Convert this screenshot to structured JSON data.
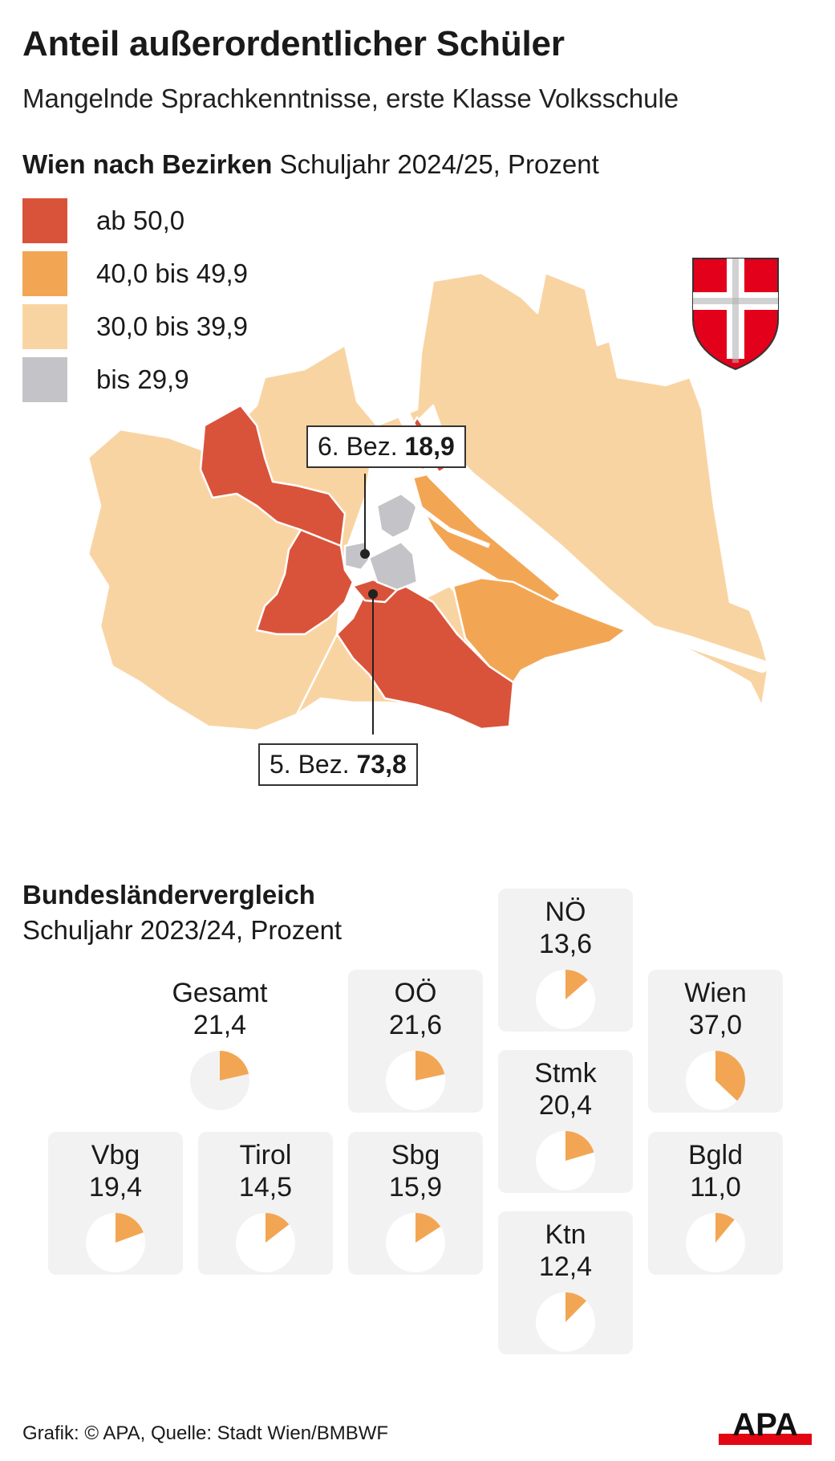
{
  "header": {
    "title": "Anteil außerordentlicher Schüler",
    "subtitle": "Mangelnde Sprachkenntnisse, erste Klasse Volksschule"
  },
  "map_section": {
    "heading_bold": "Wien nach Bezirken",
    "heading_rest": " Schuljahr 2024/25, Prozent"
  },
  "legend": [
    {
      "label": "ab 50,0",
      "color": "#d9533a"
    },
    {
      "label": "40,0 bis 49,9",
      "color": "#f2a654"
    },
    {
      "label": "30,0 bis 39,9",
      "color": "#f9d4a3"
    },
    {
      "label": "bis 29,9",
      "color": "#c4c4c8"
    }
  ],
  "callouts": {
    "bez6_label": "6. Bez. ",
    "bez6_value": "18,9",
    "bez5_label": "5. Bez. ",
    "bez5_value": "73,8"
  },
  "comparison": {
    "title": "Bundesländervergleich",
    "subtitle": "Schuljahr 2023/24, Prozent",
    "states": [
      {
        "name": "Gesamt",
        "value_label": "21,4",
        "value": 21.4
      },
      {
        "name": "NÖ",
        "value_label": "13,6",
        "value": 13.6
      },
      {
        "name": "OÖ",
        "value_label": "21,6",
        "value": 21.6
      },
      {
        "name": "Wien",
        "value_label": "37,0",
        "value": 37.0
      },
      {
        "name": "Stmk",
        "value_label": "20,4",
        "value": 20.4
      },
      {
        "name": "Vbg",
        "value_label": "19,4",
        "value": 19.4
      },
      {
        "name": "Tirol",
        "value_label": "14,5",
        "value": 14.5
      },
      {
        "name": "Sbg",
        "value_label": "15,9",
        "value": 15.9
      },
      {
        "name": "Bgld",
        "value_label": "11,0",
        "value": 11.0
      },
      {
        "name": "Ktn",
        "value_label": "12,4",
        "value": 12.4
      }
    ]
  },
  "chart_data": {
    "type": "pie",
    "title": "Bundesländervergleich",
    "subtitle": "Schuljahr 2023/24, Prozent",
    "categories": [
      "Gesamt",
      "NÖ",
      "OÖ",
      "Wien",
      "Stmk",
      "Vbg",
      "Tirol",
      "Sbg",
      "Bgld",
      "Ktn"
    ],
    "values": [
      21.4,
      13.6,
      21.6,
      37.0,
      20.4,
      19.4,
      14.5,
      15.9,
      11.0,
      12.4
    ],
    "slice_color": "#f2a654",
    "rest_color": "#ffffff"
  },
  "footer": {
    "credit": "Grafik: © APA, Quelle: Stadt Wien/BMBWF",
    "logo": "APA",
    "logo_color": "#e30613"
  }
}
